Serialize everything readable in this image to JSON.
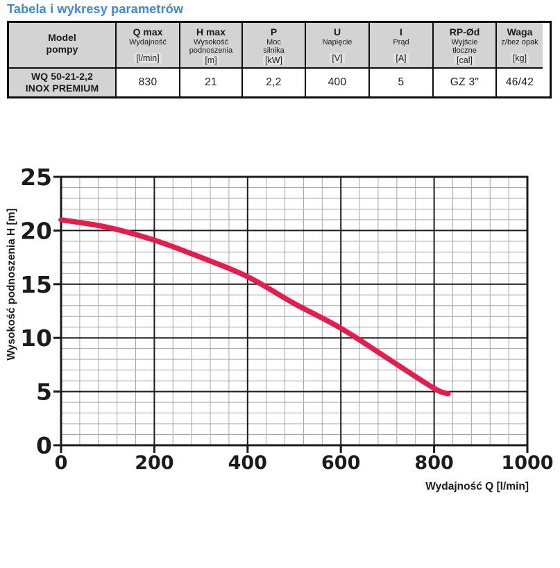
{
  "page_title": "Tabela i wykresy parametrów",
  "colors": {
    "title": "#3d87e0",
    "header_bg": "#d3d3d3",
    "unit_bg": "#e2e2e2",
    "curve": "#e41d4f",
    "grid_minor": "#a6a6a6",
    "grid_major": "#1b1b1b"
  },
  "table": {
    "columns": [
      {
        "title": "Model\npompy",
        "subtitle": "",
        "unit": ""
      },
      {
        "title": "Q max",
        "subtitle": "Wydajność",
        "unit": "[l/min]"
      },
      {
        "title": "H max",
        "subtitle": "Wysokość\npodnoszenia",
        "unit": "[m]"
      },
      {
        "title": "P",
        "subtitle": "Moc\nsilnika",
        "unit": "[kW]"
      },
      {
        "title": "U",
        "subtitle": "Napięcie",
        "unit": "[V]"
      },
      {
        "title": "I",
        "subtitle": "Prąd",
        "unit": "[A]"
      },
      {
        "title": "RP-Ød",
        "subtitle": "Wyjście\ntłoczne",
        "unit": "[cal]"
      },
      {
        "title": "Waga",
        "subtitle": "z/bez opak",
        "unit": "[kg]"
      }
    ],
    "rows": [
      {
        "model": "WQ 50-21-2,2\nINOX PREMIUM",
        "values": [
          "830",
          "21",
          "2,2",
          "400",
          "5",
          "GZ 3\"",
          "46/42"
        ]
      }
    ]
  },
  "chart_data": {
    "type": "line",
    "title": "",
    "xlabel": "Wydajność Q [l/min]",
    "ylabel": "Wysokość podnoszenia H [m]",
    "xlim": [
      0,
      1000
    ],
    "ylim": [
      0,
      25
    ],
    "x_major_ticks": [
      0,
      200,
      400,
      600,
      800,
      1000
    ],
    "y_major_ticks": [
      0,
      5,
      10,
      15,
      20,
      25
    ],
    "x_minor_step": 40,
    "y_minor_step": 1,
    "grid": "major+minor",
    "legend": "none",
    "series": [
      {
        "color": "#e41d4f",
        "x": [
          0,
          100,
          200,
          300,
          400,
          500,
          600,
          700,
          800,
          830
        ],
        "y": [
          21.0,
          20.3,
          19.1,
          17.5,
          15.7,
          13.2,
          10.9,
          8.1,
          5.3,
          4.8
        ]
      }
    ]
  }
}
